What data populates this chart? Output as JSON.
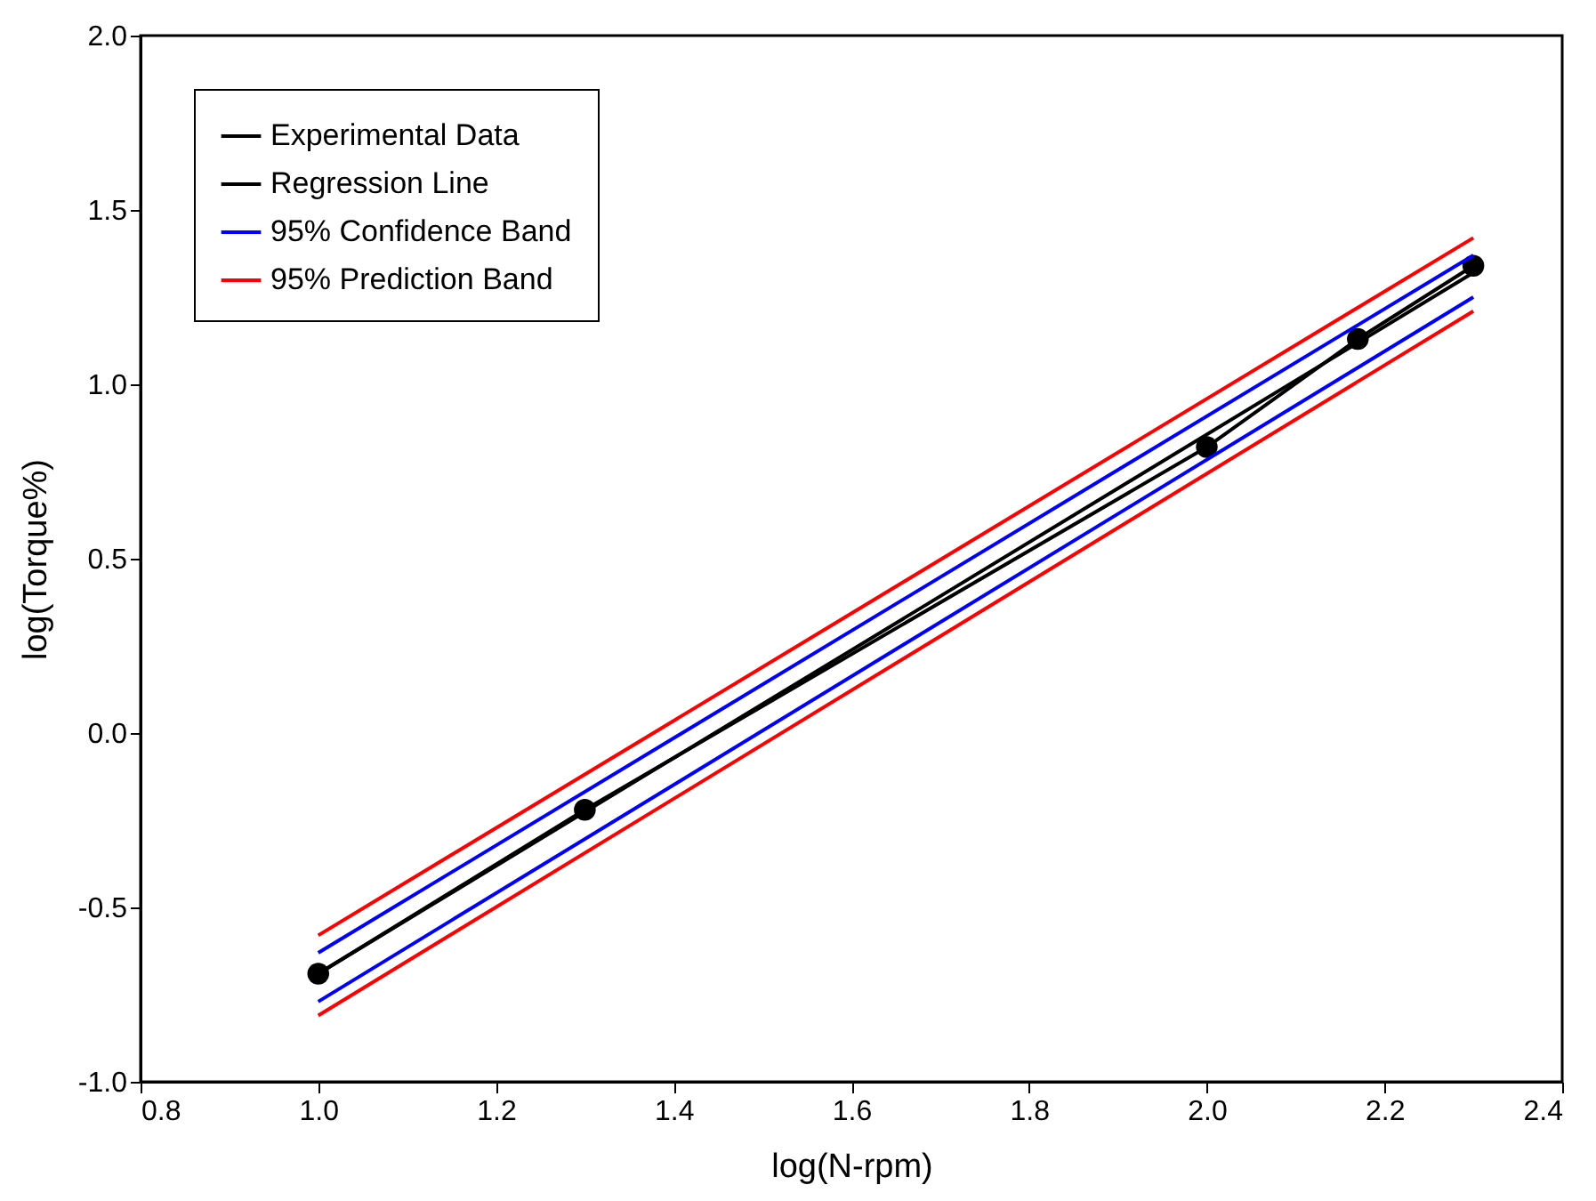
{
  "chart_data": {
    "type": "line",
    "xlabel": "log(N-rpm)",
    "ylabel": "log(Torque%)",
    "xlim": [
      0.8,
      2.4
    ],
    "ylim": [
      -1.0,
      2.0
    ],
    "xticks": [
      {
        "value": 0.8,
        "label": "0.8"
      },
      {
        "value": 1.0,
        "label": "1.0"
      },
      {
        "value": 1.2,
        "label": "1.2"
      },
      {
        "value": 1.4,
        "label": "1.4"
      },
      {
        "value": 1.6,
        "label": "1.6"
      },
      {
        "value": 1.8,
        "label": "1.8"
      },
      {
        "value": 2.0,
        "label": "2.0"
      },
      {
        "value": 2.2,
        "label": "2.2"
      },
      {
        "value": 2.4,
        "label": "2.4"
      }
    ],
    "yticks": [
      {
        "value": -1.0,
        "label": "-1.0"
      },
      {
        "value": -0.5,
        "label": "-0.5"
      },
      {
        "value": 0.0,
        "label": "0.0"
      },
      {
        "value": 0.5,
        "label": "0.5"
      },
      {
        "value": 1.0,
        "label": "1.0"
      },
      {
        "value": 1.5,
        "label": "1.5"
      },
      {
        "value": 2.0,
        "label": "2.0"
      }
    ],
    "grid": false,
    "legend": "top left",
    "series": [
      {
        "name": "Experimental Data",
        "color": "#000000",
        "marker": "circle",
        "x": [
          1.0,
          1.3,
          2.0,
          2.17,
          2.3
        ],
        "values": [
          -0.69,
          -0.22,
          0.82,
          1.13,
          1.34
        ]
      },
      {
        "name": "Regression Line",
        "color": "#000000",
        "marker": "none",
        "x": [
          1.0,
          2.3
        ],
        "values": [
          -0.69,
          1.32
        ]
      },
      {
        "name": "95% Confidence Band",
        "color": "#0000ff",
        "marker": "none",
        "x": [
          1.0,
          2.3
        ],
        "values": [
          -0.63,
          1.37
        ]
      },
      {
        "color": "#0000ff",
        "marker": "none",
        "x": [
          1.0,
          2.3
        ],
        "values": [
          -0.77,
          1.25
        ]
      },
      {
        "name": "95% Prediction Band",
        "color": "#ff0000",
        "marker": "none",
        "x": [
          1.0,
          2.3
        ],
        "values": [
          -0.58,
          1.42
        ]
      },
      {
        "color": "#ff0000",
        "marker": "none",
        "x": [
          1.0,
          2.3
        ],
        "values": [
          -0.81,
          1.21
        ]
      }
    ]
  }
}
